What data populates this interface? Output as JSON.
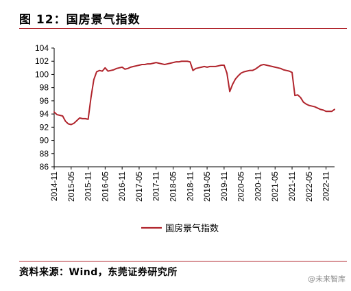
{
  "figure": {
    "title": "图 12：国房景气指数",
    "source": "资料来源：Wind，东莞证券研究所",
    "watermark": "@未来智库"
  },
  "chart_data": {
    "type": "line",
    "title": "",
    "xlabel": "",
    "ylabel": "",
    "ylim": [
      86,
      104
    ],
    "yticks": [
      86,
      88,
      90,
      92,
      94,
      96,
      98,
      100,
      102,
      104
    ],
    "xticks": [
      "2014-11",
      "2015-05",
      "2015-11",
      "2016-05",
      "2016-11",
      "2017-05",
      "2017-11",
      "2018-05",
      "2018-11",
      "2019-05",
      "2019-11",
      "2020-05",
      "2020-11",
      "2021-05",
      "2021-11",
      "2022-05",
      "2022-11"
    ],
    "x": [
      "2014-11",
      "2014-12",
      "2015-01",
      "2015-02",
      "2015-03",
      "2015-04",
      "2015-05",
      "2015-06",
      "2015-07",
      "2015-08",
      "2015-09",
      "2015-10",
      "2015-11",
      "2015-12",
      "2016-01",
      "2016-02",
      "2016-03",
      "2016-04",
      "2016-05",
      "2016-06",
      "2016-07",
      "2016-08",
      "2016-09",
      "2016-10",
      "2016-11",
      "2016-12",
      "2017-01",
      "2017-02",
      "2017-03",
      "2017-04",
      "2017-05",
      "2017-06",
      "2017-07",
      "2017-08",
      "2017-09",
      "2017-10",
      "2017-11",
      "2017-12",
      "2018-01",
      "2018-02",
      "2018-03",
      "2018-04",
      "2018-05",
      "2018-06",
      "2018-07",
      "2018-08",
      "2018-09",
      "2018-10",
      "2018-11",
      "2018-12",
      "2019-01",
      "2019-02",
      "2019-03",
      "2019-04",
      "2019-05",
      "2019-06",
      "2019-07",
      "2019-08",
      "2019-09",
      "2019-10",
      "2019-11",
      "2019-12",
      "2020-01",
      "2020-02",
      "2020-03",
      "2020-04",
      "2020-05",
      "2020-06",
      "2020-07",
      "2020-08",
      "2020-09",
      "2020-10",
      "2020-11",
      "2020-12",
      "2021-01",
      "2021-02",
      "2021-03",
      "2021-04",
      "2021-05",
      "2021-06",
      "2021-07",
      "2021-08",
      "2021-09",
      "2021-10",
      "2021-11",
      "2021-12",
      "2022-01",
      "2022-02",
      "2022-03",
      "2022-04",
      "2022-05",
      "2022-06",
      "2022-07",
      "2022-08",
      "2022-09",
      "2022-10",
      "2022-11",
      "2022-12",
      "2023-01",
      "2023-02"
    ],
    "series": [
      {
        "name": "国房景气指数",
        "color": "#b0242c",
        "values": [
          94.3,
          93.9,
          93.8,
          93.7,
          92.9,
          92.5,
          92.4,
          92.6,
          93.0,
          93.4,
          93.3,
          93.3,
          93.2,
          96.5,
          99.2,
          100.4,
          100.6,
          100.5,
          101.0,
          100.5,
          100.6,
          100.7,
          100.9,
          101.0,
          101.1,
          100.8,
          100.9,
          101.1,
          101.2,
          101.3,
          101.4,
          101.5,
          101.5,
          101.6,
          101.6,
          101.7,
          101.8,
          101.7,
          101.6,
          101.5,
          101.6,
          101.7,
          101.8,
          101.9,
          101.9,
          102.0,
          102.0,
          102.0,
          101.9,
          100.6,
          100.9,
          101.0,
          101.1,
          101.2,
          101.1,
          101.2,
          101.2,
          101.2,
          101.3,
          101.4,
          101.4,
          100.2,
          97.4,
          98.5,
          99.3,
          99.8,
          100.2,
          100.4,
          100.5,
          100.6,
          100.6,
          100.8,
          101.1,
          101.4,
          101.5,
          101.4,
          101.3,
          101.2,
          101.1,
          101.0,
          100.9,
          100.7,
          100.6,
          100.5,
          100.3,
          96.8,
          96.9,
          96.5,
          95.8,
          95.5,
          95.3,
          95.2,
          95.1,
          94.9,
          94.7,
          94.6,
          94.4,
          94.4,
          94.4,
          94.7
        ]
      }
    ],
    "legend": "bottom-center",
    "grid": false
  }
}
